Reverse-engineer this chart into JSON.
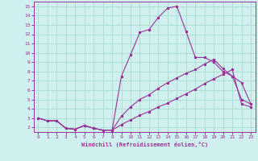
{
  "xlabel": "Windchill (Refroidissement éolien,°C)",
  "background_color": "#cff0ee",
  "grid_color": "#aaddcc",
  "line_color": "#993399",
  "xlim": [
    -0.5,
    23.5
  ],
  "ylim": [
    1.5,
    15.5
  ],
  "xticks": [
    0,
    1,
    2,
    3,
    4,
    5,
    6,
    7,
    8,
    9,
    10,
    11,
    12,
    13,
    14,
    15,
    16,
    17,
    18,
    19,
    20,
    21,
    22,
    23
  ],
  "yticks": [
    2,
    3,
    4,
    5,
    6,
    7,
    8,
    9,
    10,
    11,
    12,
    13,
    14,
    15
  ],
  "line1_x": [
    0,
    1,
    2,
    3,
    4,
    5,
    6,
    7,
    8,
    9,
    10,
    11,
    12,
    13,
    14,
    15,
    16,
    17,
    18,
    19,
    20,
    21,
    22,
    23
  ],
  "line1_y": [
    3.0,
    2.7,
    2.7,
    1.9,
    1.8,
    2.2,
    1.9,
    1.7,
    1.7,
    7.5,
    9.8,
    12.2,
    12.5,
    13.8,
    14.8,
    15.0,
    12.3,
    9.5,
    9.5,
    9.0,
    8.0,
    7.5,
    5.0,
    4.5
  ],
  "line2_x": [
    0,
    1,
    2,
    3,
    4,
    5,
    6,
    7,
    8,
    9,
    10,
    11,
    12,
    13,
    14,
    15,
    16,
    17,
    18,
    19,
    20,
    21,
    22,
    23
  ],
  "line2_y": [
    3.0,
    2.7,
    2.7,
    1.9,
    1.8,
    2.2,
    1.9,
    1.7,
    1.7,
    3.2,
    4.2,
    5.0,
    5.5,
    6.2,
    6.8,
    7.3,
    7.8,
    8.2,
    8.8,
    9.3,
    8.3,
    7.5,
    6.8,
    4.5
  ],
  "line3_x": [
    0,
    1,
    2,
    3,
    4,
    5,
    6,
    7,
    8,
    9,
    10,
    11,
    12,
    13,
    14,
    15,
    16,
    17,
    18,
    19,
    20,
    21,
    22,
    23
  ],
  "line3_y": [
    3.0,
    2.7,
    2.7,
    1.9,
    1.8,
    2.2,
    1.9,
    1.7,
    1.7,
    2.3,
    2.8,
    3.3,
    3.7,
    4.2,
    4.6,
    5.1,
    5.6,
    6.1,
    6.7,
    7.2,
    7.7,
    8.2,
    4.5,
    4.2
  ]
}
